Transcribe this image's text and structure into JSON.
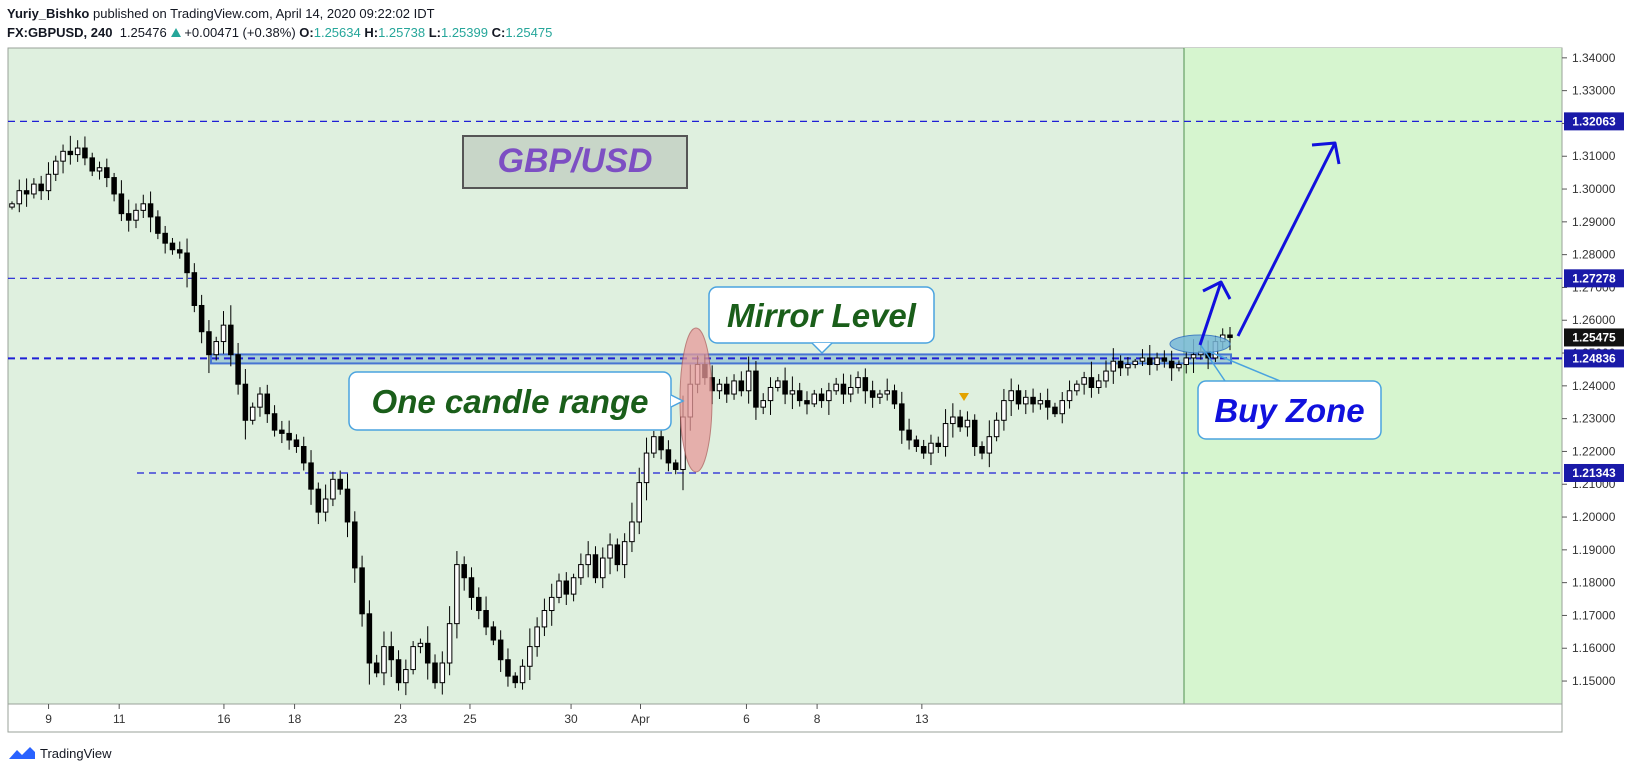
{
  "header": {
    "author": "Yuriy_Bishko",
    "published_text": "published on TradingView.com, April 14, 2020 09:22:02 IDT",
    "symbol": "FX:GBPUSD, 240",
    "last": "1.25476",
    "change": "+0.00471 (+0.38%)",
    "o_label": "O:",
    "o_value": "1.25634",
    "h_label": "H:",
    "h_value": "1.25738",
    "l_label": "L:",
    "l_value": "1.25399",
    "c_label": "C:",
    "c_value": "1.25475"
  },
  "footer": {
    "brand": "TradingView"
  },
  "colors": {
    "background_green": "#dff0df",
    "future_green": "#d6f5cf",
    "level_line": "#1f1fd6",
    "zone_fill": "#9ec9d4",
    "arrow": "#1111dd",
    "annotation_text_green": "#1a5e1a",
    "annotation_text_blue": "#1111dd",
    "title_purple": "#7d4fc3"
  },
  "chart_data": {
    "type": "candlestick",
    "title": "GBP/USD",
    "ylim": [
      1.143,
      1.343
    ],
    "y_ticks": [
      "1.34000",
      "1.33000",
      "1.32000",
      "1.31000",
      "1.30000",
      "1.29000",
      "1.28000",
      "1.27000",
      "1.26000",
      "1.25000",
      "1.24000",
      "1.23000",
      "1.22000",
      "1.21000",
      "1.20000",
      "1.19000",
      "1.18000",
      "1.17000",
      "1.16000",
      "1.15000"
    ],
    "x_ticks": [
      {
        "label": "9",
        "t": 0.03
      },
      {
        "label": "11",
        "t": 0.088
      },
      {
        "label": "16",
        "t": 0.174
      },
      {
        "label": "18",
        "t": 0.232
      },
      {
        "label": "23",
        "t": 0.319
      },
      {
        "label": "25",
        "t": 0.376
      },
      {
        "label": "30",
        "t": 0.459
      },
      {
        "label": "Apr",
        "t": 0.516
      },
      {
        "label": "6",
        "t": 0.603
      },
      {
        "label": "8",
        "t": 0.661
      },
      {
        "label": "13",
        "t": 0.747
      }
    ],
    "levels": [
      {
        "value": 1.32063,
        "label": "1.32063"
      },
      {
        "value": 1.27278,
        "label": "1.27278"
      },
      {
        "value": 1.24836,
        "label": "1.24836"
      },
      {
        "value": 1.21343,
        "label": "1.21343"
      }
    ],
    "last_price": {
      "value": 1.25475,
      "label": "1.25475"
    },
    "annotations": [
      {
        "text": "Mirror Level"
      },
      {
        "text": "One candle range"
      },
      {
        "text": "Buy Zone"
      }
    ],
    "series": [
      {
        "name": "GBPUSD",
        "closes": [
          1.2955,
          1.2995,
          1.2985,
          1.3015,
          1.2995,
          1.3045,
          1.3085,
          1.3115,
          1.3105,
          1.3125,
          1.3095,
          1.3055,
          1.3065,
          1.3035,
          1.2985,
          1.2925,
          1.2905,
          1.2935,
          1.2955,
          1.2915,
          1.2865,
          1.2835,
          1.2815,
          1.2805,
          1.2745,
          1.2645,
          1.2565,
          1.2495,
          1.2535,
          1.2585,
          1.2495,
          1.2405,
          1.2295,
          1.2335,
          1.2375,
          1.2315,
          1.2265,
          1.2255,
          1.2235,
          1.2215,
          1.2165,
          1.2085,
          1.2015,
          1.2055,
          1.2115,
          1.2085,
          1.1985,
          1.1845,
          1.1705,
          1.1555,
          1.1525,
          1.1605,
          1.1565,
          1.1495,
          1.1535,
          1.1605,
          1.1615,
          1.1555,
          1.1495,
          1.1555,
          1.1675,
          1.1855,
          1.1815,
          1.1755,
          1.1715,
          1.1665,
          1.1625,
          1.1565,
          1.1515,
          1.1495,
          1.1545,
          1.1605,
          1.1665,
          1.1715,
          1.1755,
          1.1805,
          1.1765,
          1.1815,
          1.1855,
          1.1885,
          1.1815,
          1.1875,
          1.1915,
          1.1855,
          1.1925,
          1.1985,
          1.2105,
          1.2195,
          1.2245,
          1.2205,
          1.2165,
          1.2145,
          1.2305,
          1.2405,
          1.2465,
          1.2425,
          1.2385,
          1.2405,
          1.2375,
          1.2415,
          1.2385,
          1.2445,
          1.2335,
          1.2355,
          1.2395,
          1.2415,
          1.2375,
          1.2385,
          1.2355,
          1.2345,
          1.2375,
          1.2355,
          1.2385,
          1.2405,
          1.2375,
          1.2395,
          1.2425,
          1.2385,
          1.2365,
          1.2375,
          1.2385,
          1.2345,
          1.2265,
          1.2235,
          1.2215,
          1.2195,
          1.2225,
          1.2215,
          1.2285,
          1.2305,
          1.2275,
          1.2295,
          1.2215,
          1.2195,
          1.2245,
          1.2295,
          1.2355,
          1.2385,
          1.2345,
          1.2365,
          1.2345,
          1.2355,
          1.2335,
          1.2315,
          1.2355,
          1.2385,
          1.2405,
          1.2425,
          1.2395,
          1.2415,
          1.2445,
          1.2475,
          1.2455,
          1.2465,
          1.2475,
          1.2485,
          1.2465,
          1.2485,
          1.2475,
          1.2455,
          1.2465,
          1.2485,
          1.2495,
          1.2505,
          1.2485,
          1.2535,
          1.2555,
          1.25475
        ]
      }
    ]
  }
}
